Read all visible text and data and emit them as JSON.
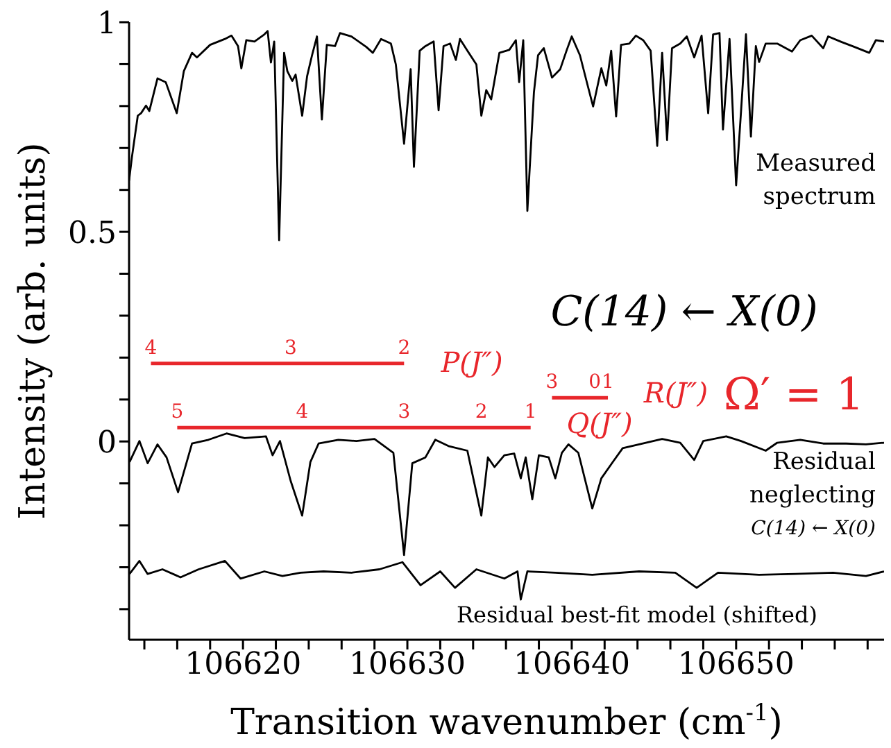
{
  "chart_data": {
    "type": "line",
    "xlabel": "Transition wavenumber (cm$^{-1}$)",
    "ylabel": "Intensity (arb. units)",
    "xlim": [
      106613.07,
      106659.0
    ],
    "ylim": [
      -0.473,
      1.0
    ],
    "xticks": [
      {
        "value": 106614,
        "label": null
      },
      {
        "value": 106616,
        "label": null
      },
      {
        "value": 106618,
        "label": null
      },
      106620,
      {
        "value": 106622,
        "label": null
      },
      {
        "value": 106624,
        "label": null
      },
      {
        "value": 106626,
        "label": null
      },
      {
        "value": 106628,
        "label": null
      },
      106630,
      {
        "value": 106632,
        "label": null
      },
      {
        "value": 106634,
        "label": null
      },
      {
        "value": 106636,
        "label": null
      },
      {
        "value": 106638,
        "label": null
      },
      106640,
      {
        "value": 106642,
        "label": null
      },
      {
        "value": 106644,
        "label": null
      },
      {
        "value": 106646,
        "label": null
      },
      {
        "value": 106648,
        "label": null
      },
      106650,
      {
        "value": 106652,
        "label": null
      },
      {
        "value": 106654,
        "label": null
      },
      {
        "value": 106656,
        "label": null
      },
      {
        "value": 106658,
        "label": null
      }
    ],
    "yticks": [
      {
        "value": -0.4,
        "label": null
      },
      {
        "value": -0.3,
        "label": null
      },
      {
        "value": -0.2,
        "label": null
      },
      {
        "value": -0.1,
        "label": null
      },
      0,
      {
        "value": 0.1,
        "label": null
      },
      {
        "value": 0.2,
        "label": null
      },
      {
        "value": 0.3,
        "label": null
      },
      {
        "value": 0.4,
        "label": null
      },
      0.5,
      {
        "value": 0.6,
        "label": null
      },
      {
        "value": 0.7,
        "label": null
      },
      {
        "value": 0.8,
        "label": null
      },
      {
        "value": 0.9,
        "label": null
      },
      1
    ],
    "marker": "none",
    "line_style": "solid",
    "series": [
      {
        "color": "#000000",
        "x": [
          106613.07,
          106613.24,
          106613.6,
          106613.8,
          106614.1,
          106614.3,
          106614.8,
          106615.3,
          106615.97,
          106616.4,
          106616.9,
          106617.2,
          106618.0,
          106618.9,
          106619.3,
          106619.7,
          106619.9,
          106620.2,
          106620.7,
          106621.3,
          106621.5,
          106621.7,
          106621.9,
          106622.2,
          106622.5,
          106622.7,
          106623.0,
          106623.2,
          106623.6,
          106623.9,
          106624.2,
          106624.5,
          106624.8,
          106625.1,
          106625.6,
          106625.9,
          106626.6,
          106627.5,
          106627.9,
          106628.4,
          106629.0,
          106629.3,
          106629.8,
          106630.2,
          106630.4,
          106630.75,
          106631.1,
          106631.6,
          106631.9,
          106632.2,
          106632.6,
          106632.95,
          106633.2,
          106633.65,
          106634.2,
          106634.5,
          106634.8,
          106635.1,
          106635.6,
          106636.2,
          106636.6,
          106636.8,
          106637.05,
          106637.3,
          106637.7,
          106637.95,
          106638.3,
          106638.8,
          106639.3,
          106639.7,
          106640.0,
          106640.5,
          106640.97,
          106641.3,
          106641.8,
          106642.1,
          106642.4,
          106642.7,
          106643.0,
          106643.5,
          106643.9,
          106644.35,
          106644.8,
          106645.2,
          106645.5,
          106645.8,
          106646.1,
          106646.6,
          106647.0,
          106647.45,
          106647.9,
          106648.3,
          106648.6,
          106648.99,
          106649.2,
          106649.6,
          106650.0,
          106650.3,
          106650.6,
          106650.9,
          106651.2,
          106651.4,
          106651.8,
          106652.5,
          106653.4,
          106653.9,
          106654.6,
          106655.3,
          106655.6,
          106656.4,
          106657.2,
          106658.1,
          106658.5,
          106659.0
        ],
        "values": [
          0.622,
          0.677,
          0.777,
          0.783,
          0.801,
          0.788,
          0.866,
          0.857,
          0.783,
          0.883,
          0.927,
          0.916,
          0.946,
          0.96,
          0.968,
          0.943,
          0.89,
          0.957,
          0.954,
          0.971,
          0.979,
          0.904,
          0.954,
          0.48,
          0.927,
          0.883,
          0.86,
          0.875,
          0.777,
          0.871,
          0.921,
          0.966,
          0.768,
          0.946,
          0.943,
          0.974,
          0.966,
          0.941,
          0.927,
          0.96,
          0.949,
          0.899,
          0.71,
          0.888,
          0.655,
          0.932,
          0.943,
          0.954,
          0.79,
          0.943,
          0.949,
          0.91,
          0.96,
          0.932,
          0.899,
          0.777,
          0.838,
          0.816,
          0.927,
          0.934,
          0.957,
          0.857,
          0.957,
          0.55,
          0.833,
          0.921,
          0.938,
          0.868,
          0.888,
          0.934,
          0.966,
          0.921,
          0.849,
          0.799,
          0.89,
          0.849,
          0.932,
          0.775,
          0.946,
          0.949,
          0.968,
          0.957,
          0.932,
          0.705,
          0.927,
          0.719,
          0.938,
          0.949,
          0.966,
          0.916,
          0.968,
          0.783,
          0.971,
          0.974,
          0.744,
          0.96,
          0.611,
          0.788,
          0.971,
          0.727,
          0.943,
          0.905,
          0.949,
          0.949,
          0.93,
          0.957,
          0.968,
          0.938,
          0.966,
          0.953,
          0.941,
          0.927,
          0.957,
          0.954
        ]
      },
      {
        "color": "#000000",
        "x": [
          106613.1,
          106613.7,
          106614.2,
          106614.8,
          106615.35,
          106616.05,
          106616.9,
          106617.9,
          106619.0,
          106620.1,
          106621.4,
          106621.8,
          106622.25,
          106622.9,
          106623.6,
          106624.1,
          106624.6,
          106625.8,
          106626.9,
          106628.0,
          106629.15,
          106629.8,
          106630.3,
          106631.1,
          106631.7,
          106632.5,
          106633.65,
          106634.5,
          106634.9,
          106635.3,
          106635.9,
          106636.5,
          106636.9,
          106637.2,
          106637.6,
          106638.0,
          106638.6,
          106639.0,
          106639.4,
          106639.8,
          106640.4,
          106641.25,
          106641.8,
          106642.5,
          106643.1,
          106644.1,
          106645.5,
          106646.6,
          106647.45,
          106648.0,
          106649.4,
          106650.3,
          106651.8,
          106652.5,
          106653.9,
          106655.3,
          106656.7,
          106657.9,
          106659.0
        ],
        "values": [
          -0.049,
          0.001,
          -0.052,
          -0.007,
          -0.038,
          -0.121,
          -0.005,
          0.004,
          0.019,
          0.008,
          0.012,
          -0.033,
          0.001,
          -0.094,
          -0.177,
          -0.049,
          -0.005,
          0.004,
          0.001,
          0.006,
          -0.027,
          -0.271,
          -0.052,
          -0.038,
          0.004,
          -0.011,
          -0.022,
          -0.177,
          -0.038,
          -0.061,
          -0.033,
          -0.029,
          -0.088,
          -0.038,
          -0.138,
          -0.033,
          -0.038,
          -0.088,
          -0.027,
          -0.007,
          -0.027,
          -0.16,
          -0.088,
          -0.049,
          -0.016,
          -0.007,
          0.006,
          -0.003,
          -0.044,
          0.001,
          0.012,
          0.001,
          -0.022,
          -0.003,
          0.004,
          -0.005,
          -0.005,
          -0.007,
          -0.003
        ]
      },
      {
        "color": "#000000",
        "x": [
          106613.1,
          106613.7,
          106614.2,
          106615.1,
          106616.2,
          106617.3,
          106618.9,
          106619.85,
          106621.3,
          106622.4,
          106623.5,
          106624.9,
          106626.6,
          106628.3,
          106629.7,
          106630.8,
          106632.0,
          106632.9,
          106634.2,
          106635.9,
          106636.7,
          106636.9,
          106637.3,
          106639.0,
          106641.25,
          106644.1,
          106646.3,
          106647.6,
          106648.9,
          106651.4,
          106653.6,
          106655.9,
          106657.9,
          106659.0
        ],
        "values": [
          -0.316,
          -0.285,
          -0.316,
          -0.305,
          -0.324,
          -0.305,
          -0.285,
          -0.327,
          -0.31,
          -0.321,
          -0.313,
          -0.31,
          -0.313,
          -0.305,
          -0.288,
          -0.343,
          -0.31,
          -0.349,
          -0.305,
          -0.327,
          -0.31,
          -0.377,
          -0.31,
          -0.313,
          -0.318,
          -0.31,
          -0.313,
          -0.349,
          -0.313,
          -0.318,
          -0.316,
          -0.313,
          -0.321,
          -0.31
        ]
      },
      {
        "color": "#e8262b",
        "x": [
          106614.4,
          106622.9,
          106629.8
        ],
        "values": [
          0.186,
          0.186,
          0.186
        ]
      },
      {
        "color": "#e8262b",
        "x": [
          106616.0,
          106623.6,
          106629.8,
          106634.5,
          106637.5
        ],
        "values": [
          0.033,
          0.033,
          0.033,
          0.033,
          0.033
        ]
      },
      {
        "color": "#e8262b",
        "x": [
          106638.8,
          106641.4,
          106642.2
        ],
        "values": [
          0.104,
          0.104,
          0.104
        ]
      }
    ],
    "annotations": [
      "C(14) ← X(0)",
      "P(J″)",
      "R(J″)",
      "Q(J″)",
      "Ω′ = 1",
      "Measured\nspectrum",
      "Residual\nneglecting\nC(14) ← X(0)",
      "Residual best-fit model (shifted)",
      {
        "text": "4",
        "x": 106614.4,
        "y": 0.186
      },
      {
        "text": "3",
        "x": 106622.9,
        "y": 0.186
      },
      {
        "text": "2",
        "x": 106629.8,
        "y": 0.186
      },
      {
        "text": "5",
        "x": 106616.0,
        "y": 0.033
      },
      {
        "text": "4",
        "x": 106623.6,
        "y": 0.033
      },
      {
        "text": "3",
        "x": 106629.8,
        "y": 0.033
      },
      {
        "text": "2",
        "x": 106634.5,
        "y": 0.033
      },
      {
        "text": "1",
        "x": 106637.5,
        "y": 0.033
      },
      {
        "text": "3",
        "x": 106638.8,
        "y": 0.104
      },
      {
        "text": "0",
        "x": 106641.4,
        "y": 0.104
      },
      {
        "text": "1",
        "x": 106642.2,
        "y": 0.104
      }
    ]
  }
}
